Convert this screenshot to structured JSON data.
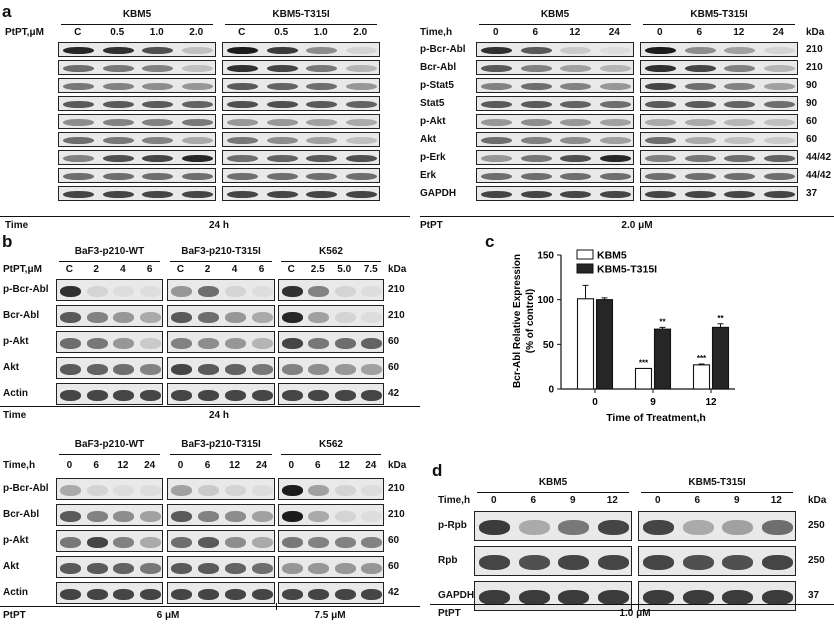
{
  "panel_letters": {
    "a": "a",
    "b": "b",
    "c": "c",
    "d": "d"
  },
  "kda_label": "kDa",
  "a_left": {
    "cols": [
      "C",
      "0.5",
      "1.0",
      "2.0"
    ],
    "row_header": "PtPT,μM",
    "group_names": [
      "KBM5",
      "KBM5-T315I"
    ],
    "footer_label": "Time",
    "footer_value": "24 h",
    "bands": [
      [
        [
          0.95,
          0.9,
          0.75,
          0.2
        ],
        [
          1,
          0.85,
          0.45,
          0.1
        ]
      ],
      [
        [
          0.6,
          0.55,
          0.5,
          0.2
        ],
        [
          0.9,
          0.8,
          0.55,
          0.25
        ]
      ],
      [
        [
          0.55,
          0.5,
          0.45,
          0.4
        ],
        [
          0.7,
          0.65,
          0.6,
          0.4
        ]
      ],
      [
        [
          0.7,
          0.7,
          0.7,
          0.65
        ],
        [
          0.75,
          0.75,
          0.7,
          0.65
        ]
      ],
      [
        [
          0.45,
          0.5,
          0.5,
          0.55
        ],
        [
          0.4,
          0.4,
          0.35,
          0.3
        ]
      ],
      [
        [
          0.6,
          0.55,
          0.5,
          0.3
        ],
        [
          0.55,
          0.45,
          0.35,
          0.2
        ]
      ],
      [
        [
          0.5,
          0.75,
          0.8,
          0.95
        ],
        [
          0.6,
          0.65,
          0.7,
          0.75
        ]
      ],
      [
        [
          0.6,
          0.6,
          0.6,
          0.6
        ],
        [
          0.6,
          0.6,
          0.6,
          0.6
        ]
      ],
      [
        [
          0.8,
          0.8,
          0.8,
          0.8
        ],
        [
          0.8,
          0.8,
          0.8,
          0.8
        ]
      ]
    ]
  },
  "a_right": {
    "cols": [
      "0",
      "6",
      "12",
      "24"
    ],
    "row_header": "Time,h",
    "group_names": [
      "KBM5",
      "KBM5-T315I"
    ],
    "footer_label": "PtPT",
    "footer_value": "2.0 μM",
    "rows": [
      {
        "name": "p-Bcr-Abl",
        "kda": "210"
      },
      {
        "name": "Bcr-Abl",
        "kda": "210"
      },
      {
        "name": "p-Stat5",
        "kda": "90"
      },
      {
        "name": "Stat5",
        "kda": "90"
      },
      {
        "name": "p-Akt",
        "kda": "60"
      },
      {
        "name": "Akt",
        "kda": "60"
      },
      {
        "name": "p-Erk",
        "kda": "44/42"
      },
      {
        "name": "Erk",
        "kda": "44/42"
      },
      {
        "name": "GAPDH",
        "kda": "37"
      }
    ],
    "bands": [
      [
        [
          0.9,
          0.7,
          0.15,
          0.05
        ],
        [
          1,
          0.45,
          0.35,
          0.1
        ]
      ],
      [
        [
          0.7,
          0.5,
          0.35,
          0.25
        ],
        [
          0.9,
          0.8,
          0.5,
          0.25
        ]
      ],
      [
        [
          0.5,
          0.6,
          0.5,
          0.4
        ],
        [
          0.8,
          0.6,
          0.5,
          0.35
        ]
      ],
      [
        [
          0.7,
          0.7,
          0.65,
          0.6
        ],
        [
          0.7,
          0.7,
          0.65,
          0.6
        ]
      ],
      [
        [
          0.4,
          0.45,
          0.4,
          0.35
        ],
        [
          0.3,
          0.3,
          0.25,
          0.2
        ]
      ],
      [
        [
          0.6,
          0.5,
          0.45,
          0.35
        ],
        [
          0.6,
          0.3,
          0.2,
          0.15
        ]
      ],
      [
        [
          0.4,
          0.55,
          0.75,
          0.95
        ],
        [
          0.5,
          0.55,
          0.6,
          0.65
        ]
      ],
      [
        [
          0.6,
          0.6,
          0.6,
          0.6
        ],
        [
          0.6,
          0.6,
          0.6,
          0.6
        ]
      ],
      [
        [
          0.8,
          0.8,
          0.8,
          0.8
        ],
        [
          0.8,
          0.8,
          0.8,
          0.8
        ]
      ]
    ]
  },
  "b_top": {
    "row_header": "PtPT,μM",
    "groups": [
      {
        "name": "BaF3-p210-WT",
        "cols": [
          "C",
          "2",
          "4",
          "6"
        ]
      },
      {
        "name": "BaF3-p210-T315I",
        "cols": [
          "C",
          "2",
          "4",
          "6"
        ]
      },
      {
        "name": "K562",
        "cols": [
          "C",
          "2.5",
          "5.0",
          "7.5"
        ]
      }
    ],
    "rows": [
      {
        "name": "p-Bcr-Abl",
        "kda": "210"
      },
      {
        "name": "Bcr-Abl",
        "kda": "210"
      },
      {
        "name": "p-Akt",
        "kda": "60"
      },
      {
        "name": "Akt",
        "kda": "60"
      },
      {
        "name": "Actin",
        "kda": "42"
      }
    ],
    "footer_label": "Time",
    "footer_value": "24 h",
    "bands": [
      [
        [
          0.9,
          0.1,
          0.05,
          0.05
        ],
        [
          0.4,
          0.6,
          0.1,
          0.05
        ],
        [
          0.9,
          0.5,
          0.1,
          0.05
        ]
      ],
      [
        [
          0.7,
          0.5,
          0.4,
          0.3
        ],
        [
          0.7,
          0.6,
          0.4,
          0.3
        ],
        [
          0.95,
          0.35,
          0.1,
          0.05
        ]
      ],
      [
        [
          0.6,
          0.55,
          0.4,
          0.15
        ],
        [
          0.5,
          0.45,
          0.4,
          0.25
        ],
        [
          0.8,
          0.55,
          0.6,
          0.65
        ]
      ],
      [
        [
          0.7,
          0.65,
          0.6,
          0.5
        ],
        [
          0.8,
          0.7,
          0.65,
          0.55
        ],
        [
          0.5,
          0.45,
          0.4,
          0.35
        ]
      ],
      [
        [
          0.8,
          0.8,
          0.8,
          0.8
        ],
        [
          0.8,
          0.8,
          0.8,
          0.8
        ],
        [
          0.8,
          0.8,
          0.8,
          0.8
        ]
      ]
    ]
  },
  "b_bottom": {
    "row_header": "Time,h",
    "groups": [
      {
        "name": "BaF3-p210-WT",
        "cols": [
          "0",
          "6",
          "12",
          "24"
        ]
      },
      {
        "name": "BaF3-p210-T315I",
        "cols": [
          "0",
          "6",
          "12",
          "24"
        ]
      },
      {
        "name": "K562",
        "cols": [
          "0",
          "6",
          "12",
          "24"
        ]
      }
    ],
    "rows": [
      {
        "name": "p-Bcr-Abl",
        "kda": "210"
      },
      {
        "name": "Bcr-Abl",
        "kda": "210"
      },
      {
        "name": "p-Akt",
        "kda": "60"
      },
      {
        "name": "Akt",
        "kda": "60"
      },
      {
        "name": "Actin",
        "kda": "42"
      }
    ],
    "footer_label": "PtPT",
    "footer_values": [
      "6 μM",
      "7.5 μM"
    ],
    "bands": [
      [
        [
          0.3,
          0.1,
          0.05,
          0.05
        ],
        [
          0.35,
          0.15,
          0.1,
          0.05
        ],
        [
          1,
          0.35,
          0.1,
          0.05
        ]
      ],
      [
        [
          0.7,
          0.5,
          0.45,
          0.35
        ],
        [
          0.7,
          0.5,
          0.45,
          0.35
        ],
        [
          1,
          0.3,
          0.1,
          0.05
        ]
      ],
      [
        [
          0.55,
          0.8,
          0.5,
          0.3
        ],
        [
          0.6,
          0.7,
          0.45,
          0.3
        ],
        [
          0.55,
          0.5,
          0.5,
          0.5
        ]
      ],
      [
        [
          0.7,
          0.7,
          0.65,
          0.55
        ],
        [
          0.7,
          0.7,
          0.65,
          0.6
        ],
        [
          0.4,
          0.4,
          0.4,
          0.4
        ]
      ],
      [
        [
          0.8,
          0.8,
          0.8,
          0.8
        ],
        [
          0.8,
          0.8,
          0.8,
          0.8
        ],
        [
          0.8,
          0.8,
          0.8,
          0.8
        ]
      ]
    ]
  },
  "d": {
    "row_header": "Time,h",
    "groups": [
      {
        "name": "KBM5",
        "cols": [
          "0",
          "6",
          "9",
          "12"
        ]
      },
      {
        "name": "KBM5-T315I",
        "cols": [
          "0",
          "6",
          "9",
          "12"
        ]
      }
    ],
    "rows": [
      {
        "name": "p-Rpb",
        "kda": "250"
      },
      {
        "name": "Rpb",
        "kda": "250"
      },
      {
        "name": "GAPDH",
        "kda": "37"
      }
    ],
    "footer_label": "PtPT",
    "footer_value": "1.0 μM",
    "bands": [
      [
        [
          0.85,
          0.3,
          0.55,
          0.8
        ],
        [
          0.8,
          0.3,
          0.35,
          0.6
        ]
      ],
      [
        [
          0.8,
          0.75,
          0.8,
          0.8
        ],
        [
          0.8,
          0.75,
          0.75,
          0.8
        ]
      ],
      [
        [
          0.85,
          0.85,
          0.85,
          0.85
        ],
        [
          0.85,
          0.85,
          0.85,
          0.85
        ]
      ]
    ]
  },
  "chart_data": {
    "type": "bar",
    "categories": [
      "0",
      "9",
      "12"
    ],
    "series": [
      {
        "name": "KBM5",
        "values": [
          101,
          23,
          27
        ],
        "errors": [
          15,
          0,
          1
        ],
        "color": "#ffffff",
        "sig": [
          "",
          "***",
          "***"
        ]
      },
      {
        "name": "KBM5-T315I",
        "values": [
          100,
          67,
          69
        ],
        "errors": [
          2,
          2,
          4
        ],
        "color": "#262626",
        "sig": [
          "",
          "**",
          "**"
        ]
      }
    ],
    "title": "",
    "xlabel": "Time of Treatment,h",
    "ylabel": "Bcr-Abl Relative Expression",
    "ylabel2": "(% of control)",
    "ylim": [
      0,
      150
    ],
    "yticks": [
      "0",
      "50",
      "100",
      "150"
    ],
    "legend_position": "top-left",
    "grid": false
  }
}
